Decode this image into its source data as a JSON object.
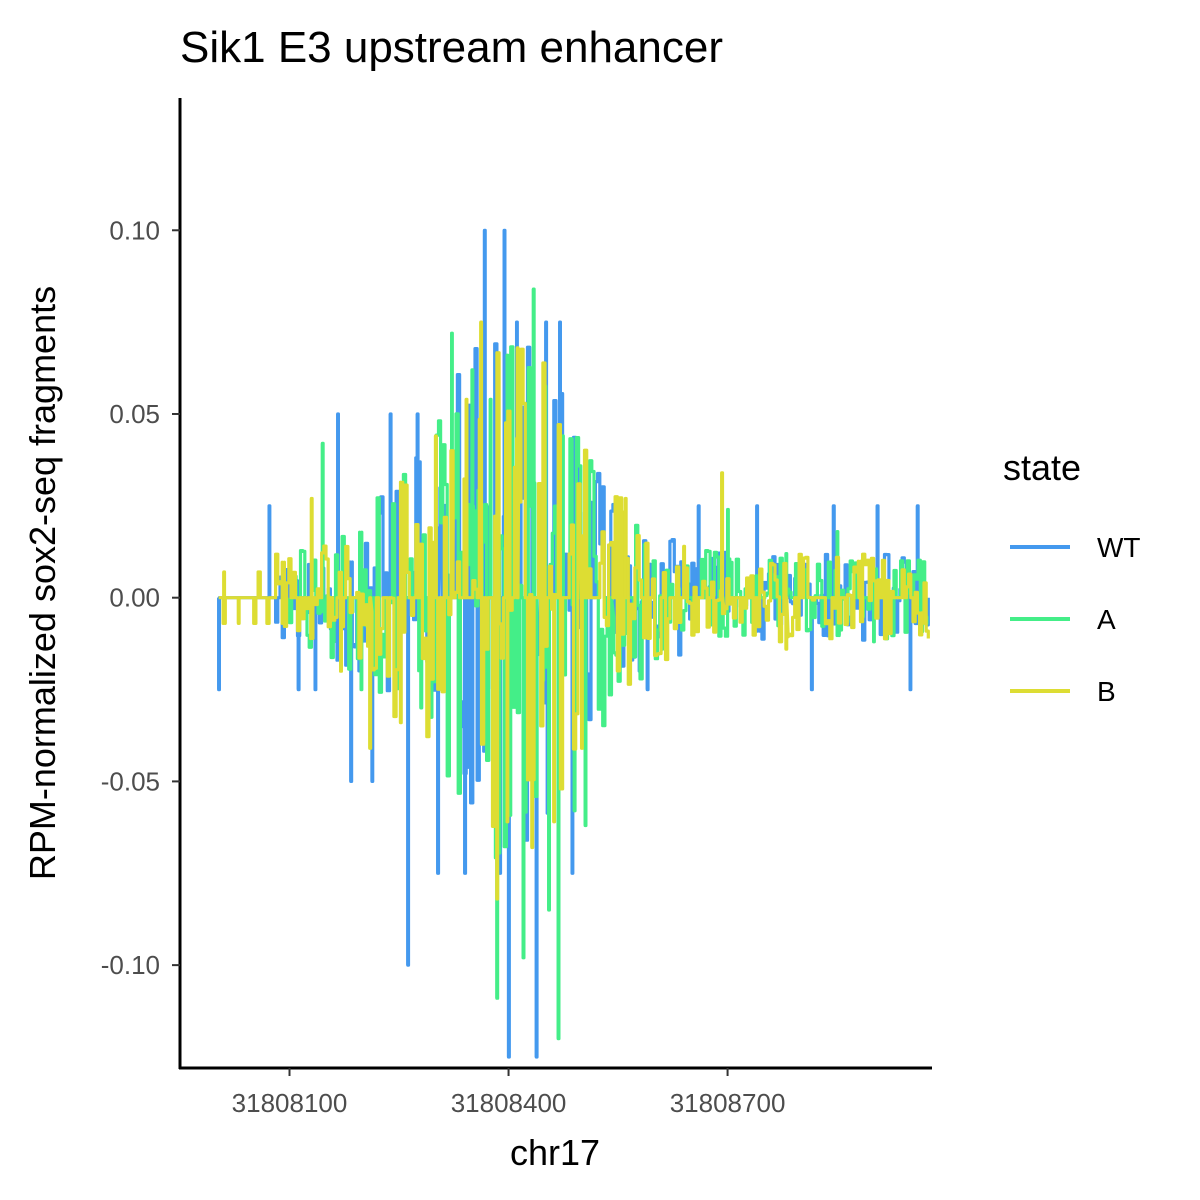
{
  "chart_data": {
    "type": "line",
    "title": "Sik1 E3 upstream enhancer",
    "xlabel": "chr17",
    "ylabel": "RPM-normalized sox2-seq fragments",
    "xlim": [
      31807950,
      31808980
    ],
    "ylim": [
      -0.128,
      0.136
    ],
    "x_ticks": [
      31808100,
      31808400,
      31808700
    ],
    "x_tick_labels": [
      "31808100",
      "31808400",
      "31808700"
    ],
    "y_ticks": [
      -0.1,
      -0.05,
      0,
      0.05,
      0.1
    ],
    "y_tick_labels": [
      "-0.10",
      "-0.05",
      "0.00",
      "0.05",
      "0.10"
    ],
    "grid": false,
    "legend": {
      "title": "state",
      "position": "right"
    },
    "series": [
      {
        "name": "WT",
        "color": "#4499ee",
        "x_range": [
          31808003,
          31808976
        ],
        "peak_samples": [
          {
            "x": 31808003,
            "y": -0.025
          },
          {
            "x": 31808072,
            "y": 0.025
          },
          {
            "x": 31808112,
            "y": -0.025
          },
          {
            "x": 31808135,
            "y": -0.025
          },
          {
            "x": 31808166,
            "y": 0.05
          },
          {
            "x": 31808184,
            "y": -0.05
          },
          {
            "x": 31808213,
            "y": -0.05
          },
          {
            "x": 31808238,
            "y": 0.05
          },
          {
            "x": 31808262,
            "y": -0.1
          },
          {
            "x": 31808275,
            "y": 0.05
          },
          {
            "x": 31808303,
            "y": -0.075
          },
          {
            "x": 31808340,
            "y": -0.075
          },
          {
            "x": 31808367,
            "y": 0.1
          },
          {
            "x": 31808388,
            "y": -0.075
          },
          {
            "x": 31808394,
            "y": 0.1
          },
          {
            "x": 31808400,
            "y": -0.125
          },
          {
            "x": 31808411,
            "y": 0.075
          },
          {
            "x": 31808438,
            "y": -0.125
          },
          {
            "x": 31808451,
            "y": 0.075
          },
          {
            "x": 31808470,
            "y": 0.075
          },
          {
            "x": 31808487,
            "y": -0.075
          },
          {
            "x": 31808513,
            "y": 0.025
          },
          {
            "x": 31808590,
            "y": -0.025
          },
          {
            "x": 31808660,
            "y": 0.025
          },
          {
            "x": 31808740,
            "y": 0.025
          },
          {
            "x": 31808815,
            "y": -0.025
          },
          {
            "x": 31808845,
            "y": 0.025
          },
          {
            "x": 31808905,
            "y": 0.025
          },
          {
            "x": 31808950,
            "y": -0.025
          },
          {
            "x": 31808960,
            "y": 0.025
          }
        ]
      },
      {
        "name": "A",
        "color": "#44ee88",
        "x_range": [
          31808100,
          31808975
        ],
        "peak_samples": [
          {
            "x": 31808145,
            "y": 0.042
          },
          {
            "x": 31808160,
            "y": -0.012
          },
          {
            "x": 31808198,
            "y": -0.025
          },
          {
            "x": 31808280,
            "y": -0.03
          },
          {
            "x": 31808322,
            "y": 0.072
          },
          {
            "x": 31808350,
            "y": 0.062
          },
          {
            "x": 31808375,
            "y": 0.054
          },
          {
            "x": 31808384,
            "y": -0.109
          },
          {
            "x": 31808398,
            "y": 0.066
          },
          {
            "x": 31808420,
            "y": -0.098
          },
          {
            "x": 31808434,
            "y": 0.084
          },
          {
            "x": 31808455,
            "y": -0.085
          },
          {
            "x": 31808468,
            "y": -0.12
          },
          {
            "x": 31808490,
            "y": -0.058
          },
          {
            "x": 31808505,
            "y": -0.062
          },
          {
            "x": 31808540,
            "y": -0.02
          },
          {
            "x": 31808610,
            "y": -0.014
          },
          {
            "x": 31808700,
            "y": 0.024
          },
          {
            "x": 31808780,
            "y": 0.012
          },
          {
            "x": 31808850,
            "y": 0.018
          },
          {
            "x": 31808900,
            "y": -0.012
          }
        ]
      },
      {
        "name": "B",
        "color": "#dddd33",
        "x_range": [
          31808003,
          31808976
        ],
        "peak_samples": [
          {
            "x": 31808010,
            "y": 0.007
          },
          {
            "x": 31808030,
            "y": -0.007
          },
          {
            "x": 31808090,
            "y": -0.007
          },
          {
            "x": 31808130,
            "y": 0.027
          },
          {
            "x": 31808170,
            "y": -0.02
          },
          {
            "x": 31808210,
            "y": -0.041
          },
          {
            "x": 31808252,
            "y": -0.034
          },
          {
            "x": 31808300,
            "y": 0.044
          },
          {
            "x": 31808342,
            "y": 0.054
          },
          {
            "x": 31808362,
            "y": 0.075
          },
          {
            "x": 31808384,
            "y": -0.082
          },
          {
            "x": 31808398,
            "y": -0.061
          },
          {
            "x": 31808412,
            "y": 0.068
          },
          {
            "x": 31808432,
            "y": -0.068
          },
          {
            "x": 31808462,
            "y": -0.061
          },
          {
            "x": 31808500,
            "y": -0.041
          },
          {
            "x": 31808560,
            "y": 0.027
          },
          {
            "x": 31808640,
            "y": 0.014
          },
          {
            "x": 31808692,
            "y": 0.034
          },
          {
            "x": 31808780,
            "y": -0.014
          },
          {
            "x": 31808880,
            "y": 0.007
          },
          {
            "x": 31808970,
            "y": -0.007
          }
        ]
      }
    ]
  }
}
